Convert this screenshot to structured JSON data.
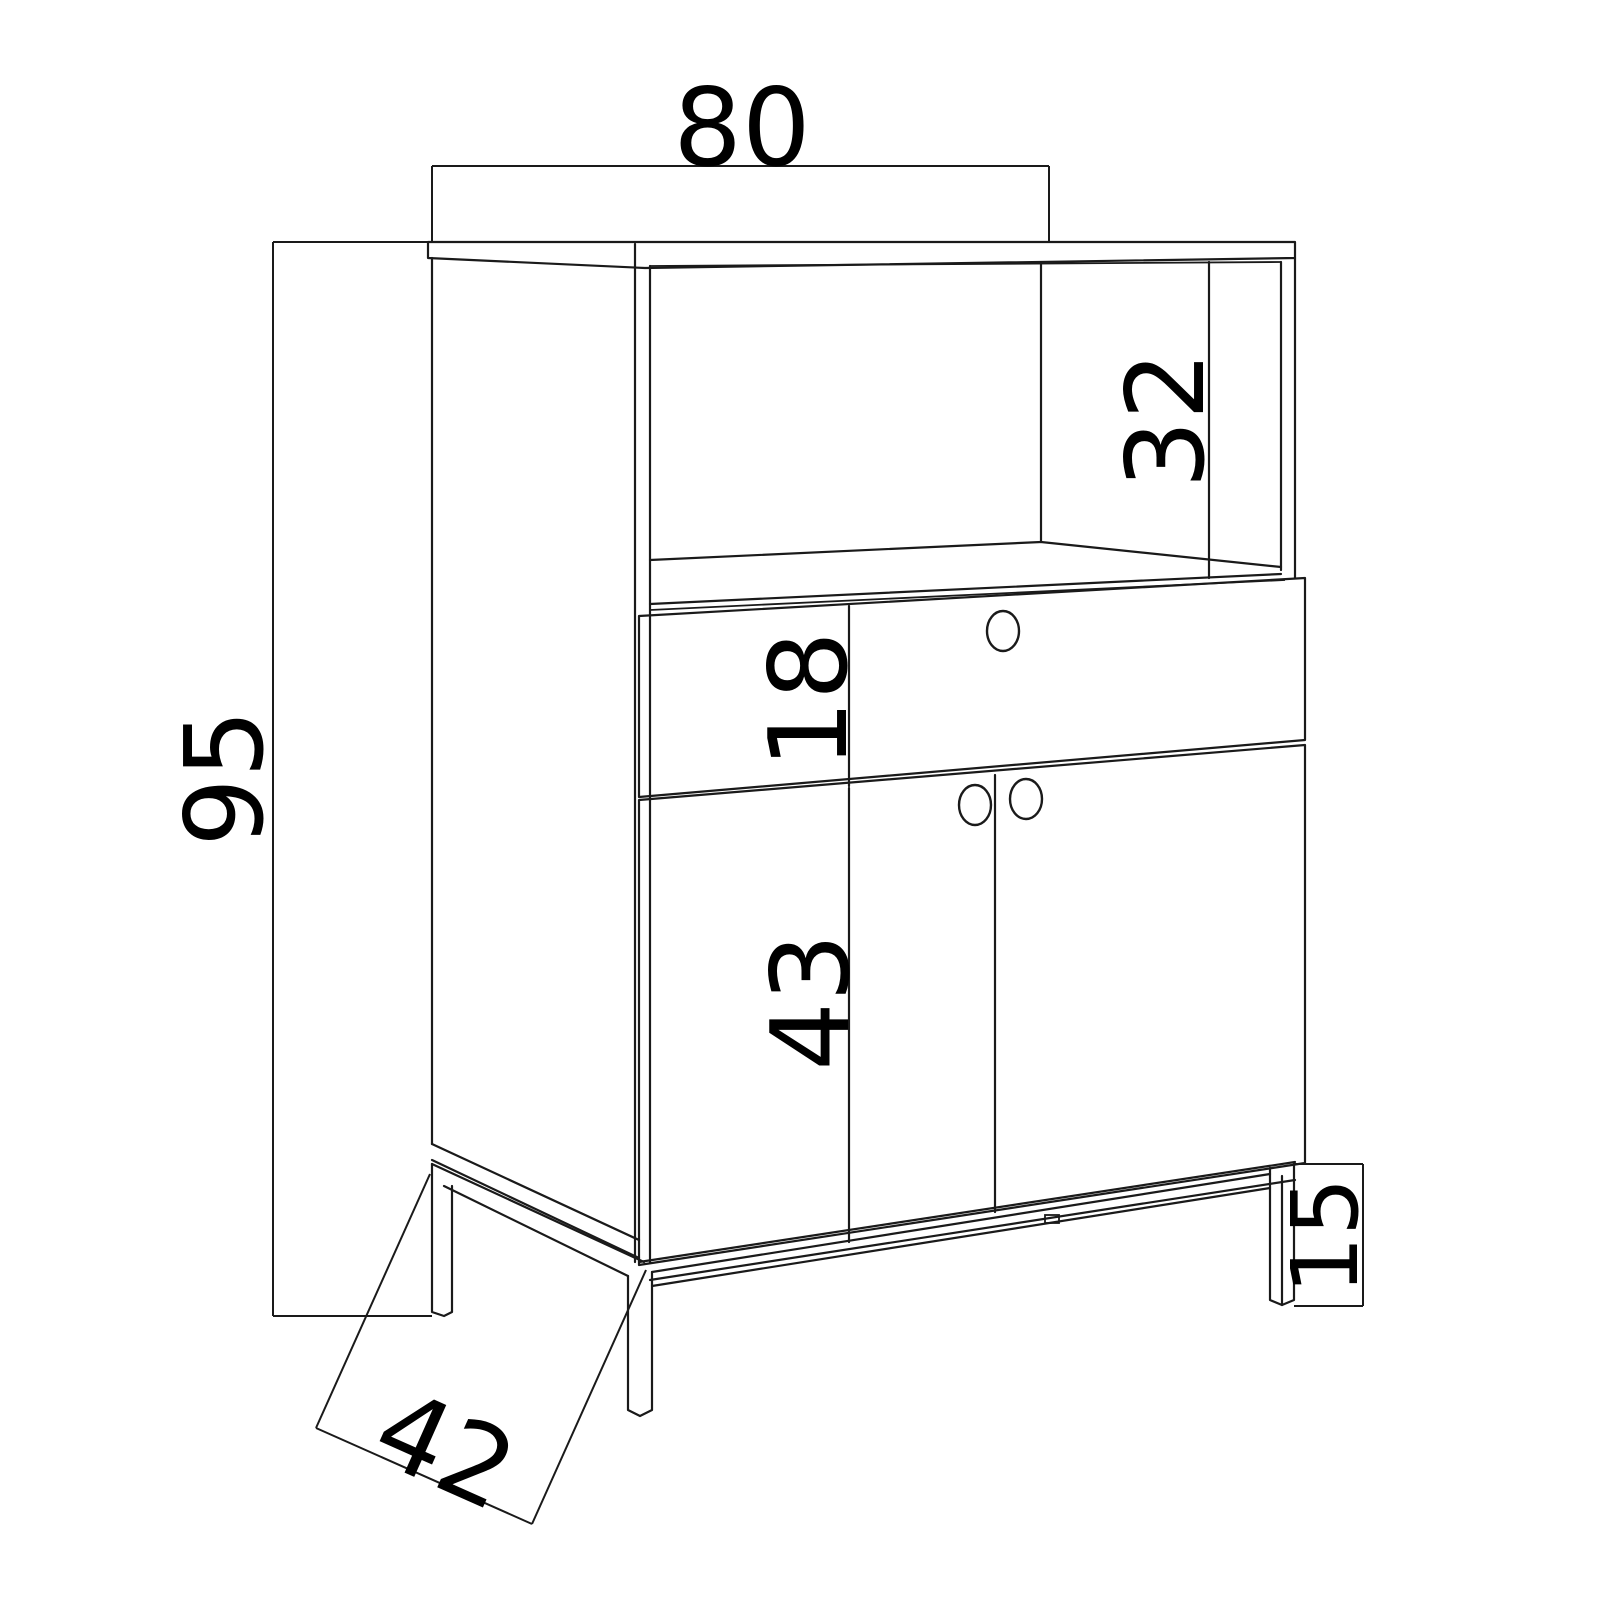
{
  "dimensions": {
    "width": "80",
    "height_total": "95",
    "depth": "42",
    "open_shelf_height": "32",
    "drawer_height": "18",
    "door_height": "43",
    "leg_height": "15"
  }
}
